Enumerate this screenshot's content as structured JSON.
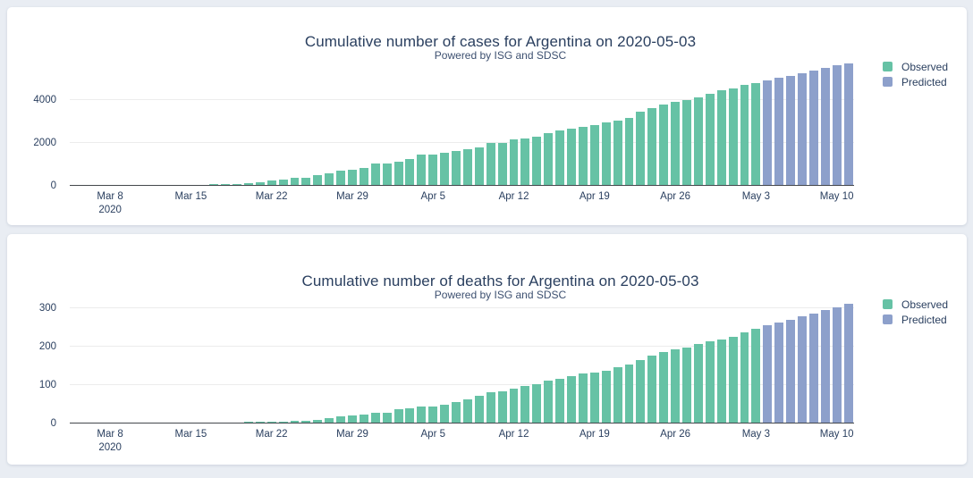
{
  "page": {
    "background": "#e9edf3",
    "card_background": "#ffffff"
  },
  "colors": {
    "observed": "#66c2a5",
    "predicted": "#8da0cb",
    "axis_line": "#44474c",
    "gridline": "#ececec",
    "text": "#2a3f5f"
  },
  "chart_data": [
    {
      "type": "bar",
      "title": "Cumulative number of cases for Argentina on 2020-05-03",
      "subtitle": "Powered by ISG and SDSC",
      "x_start": "2020-03-05",
      "x_end": "2020-05-11",
      "grid": true,
      "legend_position": "right",
      "y_ticks": [
        0,
        2000,
        4000
      ],
      "y_tick_labels": [
        "0",
        "2000",
        "4000"
      ],
      "y_max": 5900,
      "x_ticks": [
        {
          "label": "Mar 8",
          "sublabel": "2020",
          "day": 3
        },
        {
          "label": "Mar 15",
          "day": 10
        },
        {
          "label": "Mar 22",
          "day": 17
        },
        {
          "label": "Mar 29",
          "day": 24
        },
        {
          "label": "Apr 5",
          "day": 31
        },
        {
          "label": "Apr 12",
          "day": 38
        },
        {
          "label": "Apr 19",
          "day": 45
        },
        {
          "label": "Apr 26",
          "day": 52
        },
        {
          "label": "May 3",
          "day": 59
        },
        {
          "label": "May 10",
          "day": 66
        }
      ],
      "series": [
        {
          "name": "Observed",
          "color": "#66c2a5",
          "values": [
            1,
            2,
            8,
            12,
            12,
            17,
            19,
            19,
            31,
            34,
            45,
            56,
            68,
            79,
            97,
            128,
            158,
            266,
            301,
            387,
            387,
            502,
            589,
            690,
            745,
            820,
            1054,
            1054,
            1133,
            1265,
            1451,
            1451,
            1554,
            1628,
            1715,
            1795,
            1975,
            1975,
            2142,
            2208,
            2277,
            2443,
            2571,
            2669,
            2758,
            2839,
            2941,
            3031,
            3144,
            3435,
            3607,
            3780,
            3892,
            4003,
            4127,
            4285,
            4428,
            4532,
            4681,
            4783
          ]
        },
        {
          "name": "Predicted",
          "color": "#8da0cb",
          "values": [
            4900,
            5015,
            5130,
            5245,
            5360,
            5475,
            5590,
            5700
          ]
        }
      ]
    },
    {
      "type": "bar",
      "title": "Cumulative number of deaths for Argentina on 2020-05-03",
      "subtitle": "Powered by ISG and SDSC",
      "x_start": "2020-03-05",
      "x_end": "2020-05-11",
      "grid": true,
      "legend_position": "right",
      "y_ticks": [
        0,
        100,
        200,
        300
      ],
      "y_tick_labels": [
        "0",
        "100",
        "200",
        "300"
      ],
      "y_max": 320,
      "x_ticks": [
        {
          "label": "Mar 8",
          "sublabel": "2020",
          "day": 3
        },
        {
          "label": "Mar 15",
          "day": 10
        },
        {
          "label": "Mar 22",
          "day": 17
        },
        {
          "label": "Mar 29",
          "day": 24
        },
        {
          "label": "Apr 5",
          "day": 31
        },
        {
          "label": "Apr 12",
          "day": 38
        },
        {
          "label": "Apr 19",
          "day": 45
        },
        {
          "label": "Apr 26",
          "day": 52
        },
        {
          "label": "May 3",
          "day": 59
        },
        {
          "label": "May 10",
          "day": 66
        }
      ],
      "series": [
        {
          "name": "Observed",
          "color": "#66c2a5",
          "values": [
            0,
            0,
            1,
            1,
            1,
            1,
            1,
            1,
            2,
            2,
            2,
            2,
            2,
            3,
            3,
            4,
            4,
            4,
            4,
            6,
            8,
            9,
            13,
            18,
            20,
            23,
            27,
            28,
            36,
            39,
            43,
            44,
            48,
            56,
            63,
            72,
            82,
            83,
            90,
            97,
            101,
            111,
            115,
            123,
            129,
            132,
            136,
            147,
            152,
            165,
            176,
            185,
            192,
            197,
            207,
            214,
            218,
            225,
            237,
            246
          ]
        },
        {
          "name": "Predicted",
          "color": "#8da0cb",
          "values": [
            254,
            262,
            270,
            278,
            286,
            294,
            302,
            310
          ]
        }
      ]
    }
  ]
}
